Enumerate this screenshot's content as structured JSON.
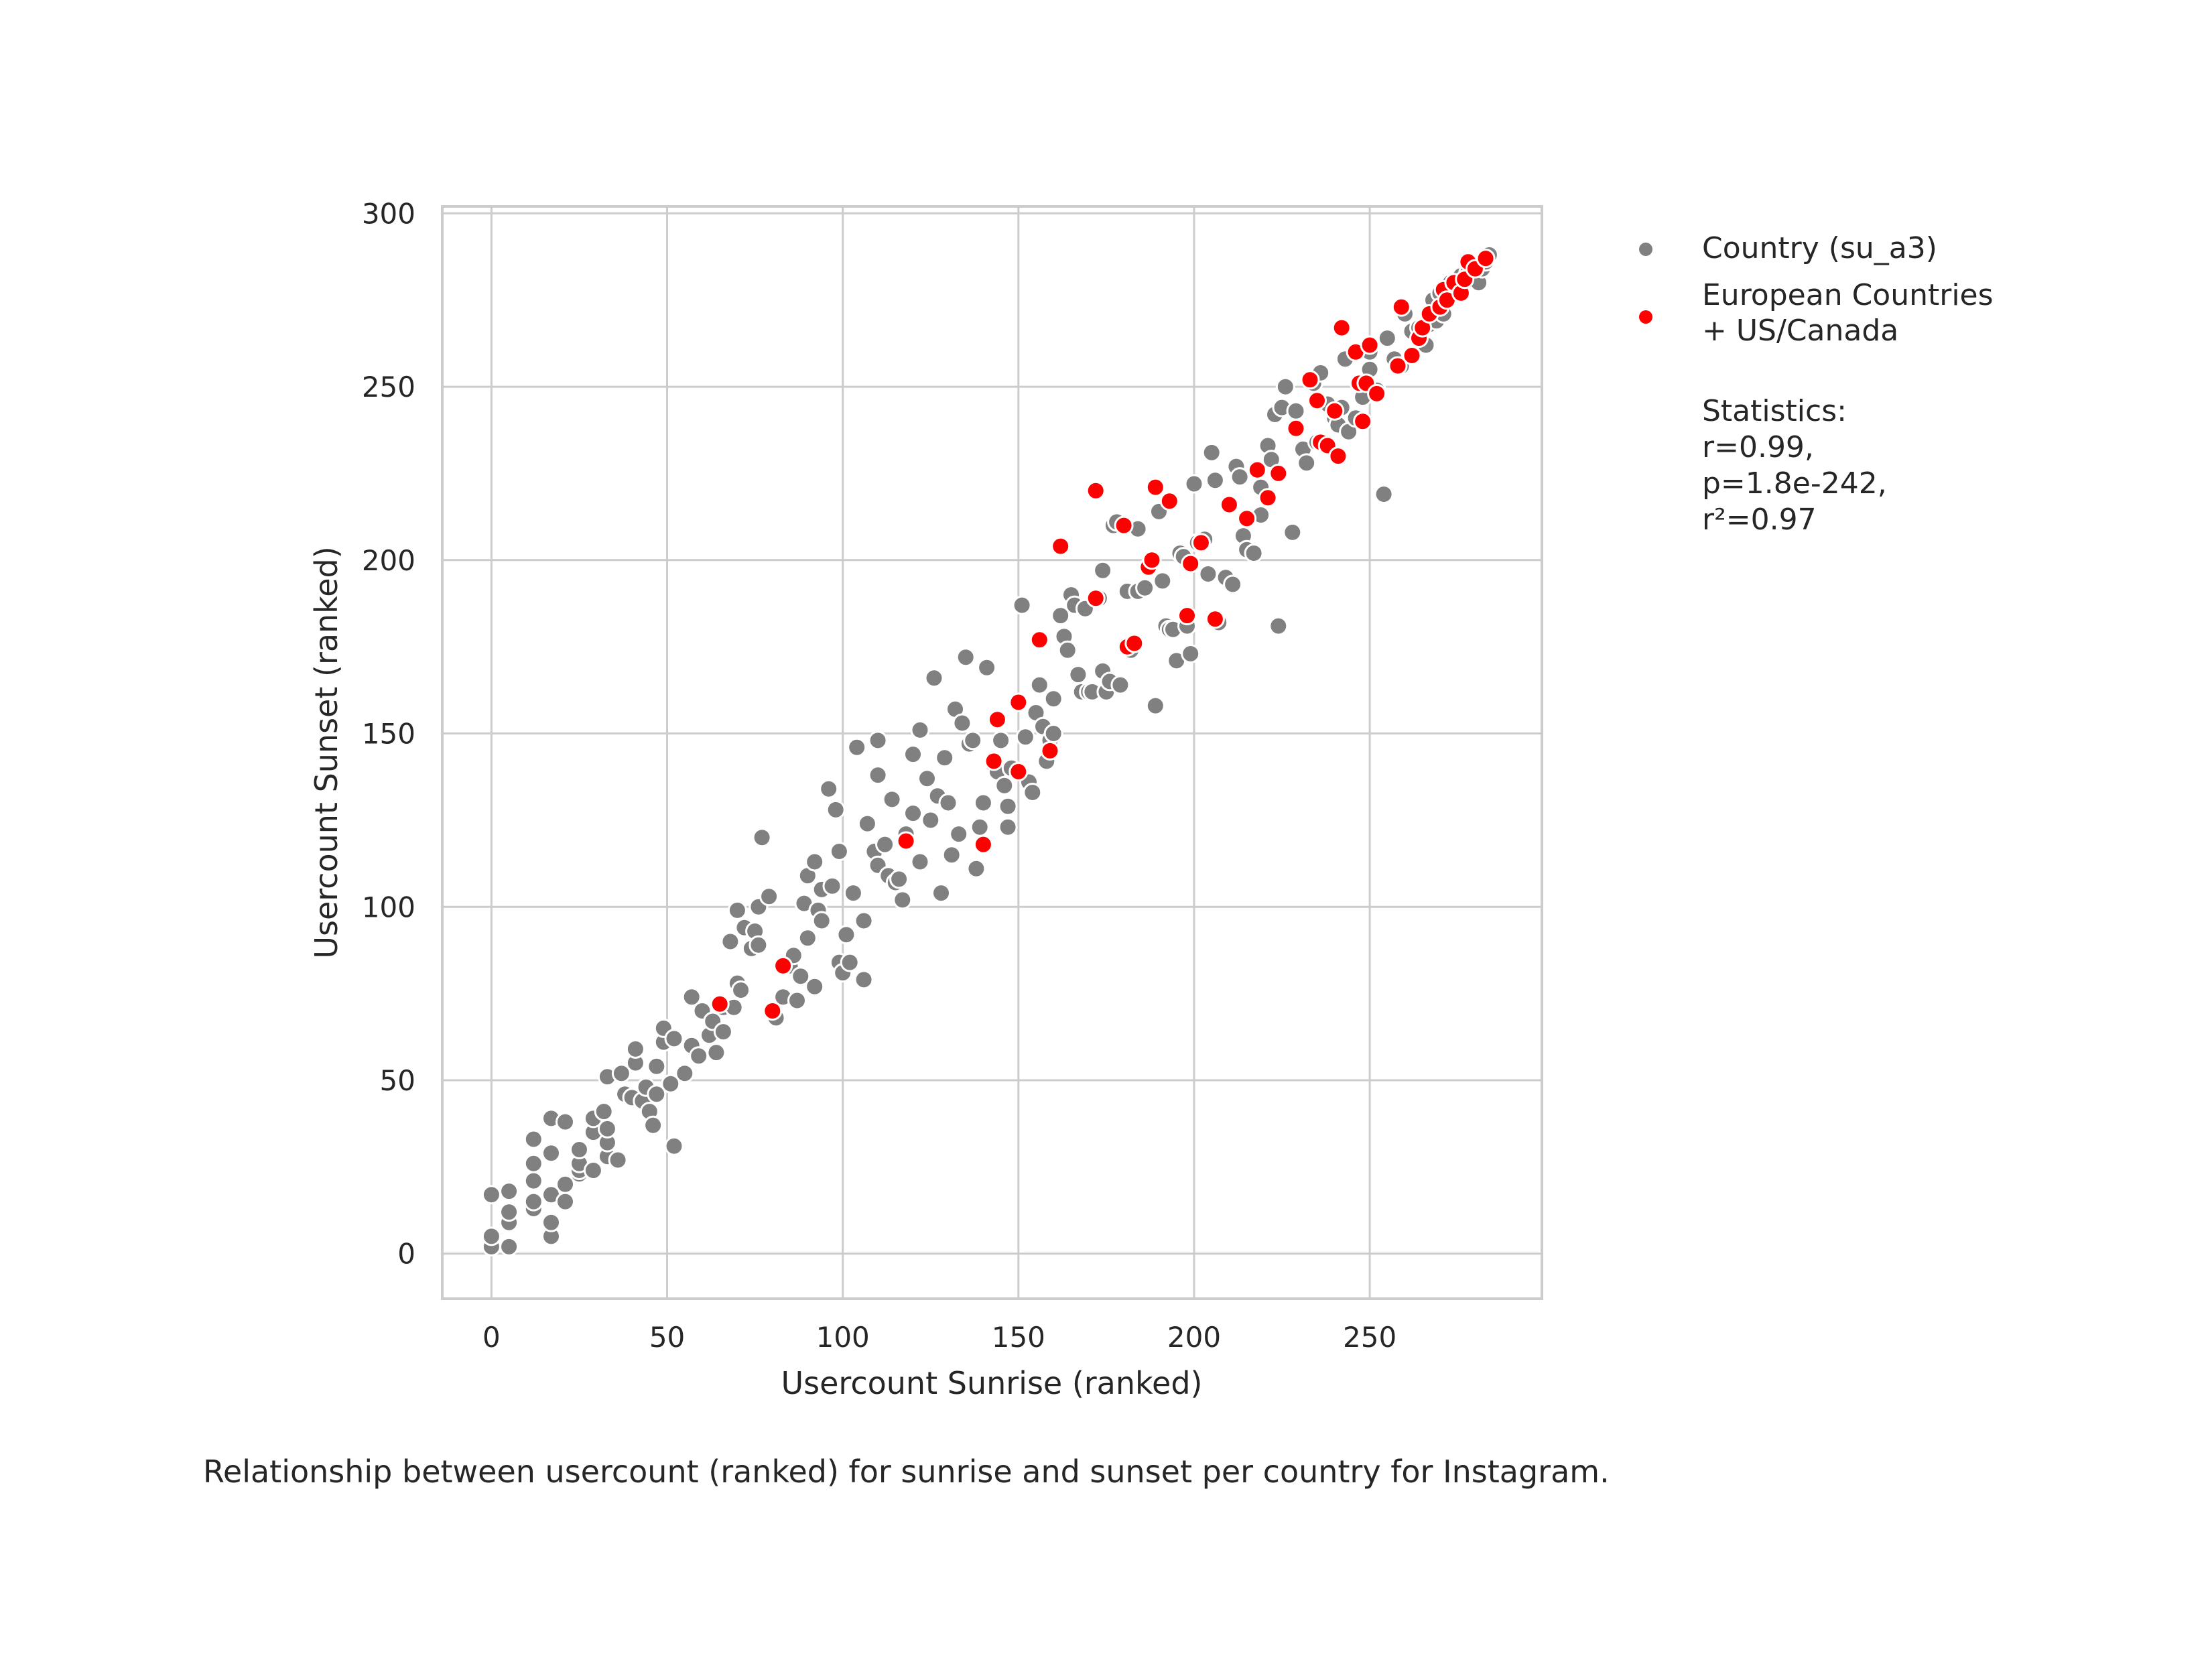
{
  "chart_data": {
    "type": "scatter",
    "title": "",
    "xlabel": "Usercount Sunrise (ranked)",
    "ylabel": "Usercount Sunset (ranked)",
    "xlim": [
      -14,
      299
    ],
    "ylim": [
      -13,
      302
    ],
    "xticks": [
      0,
      50,
      100,
      150,
      200,
      250
    ],
    "yticks": [
      0,
      50,
      100,
      150,
      200,
      250,
      300
    ],
    "grid": true,
    "legend_position": "outside-right",
    "caption": "Relationship between usercount (ranked) for sunrise and sunset per country for Instagram.",
    "series": [
      {
        "name": "Country (su_a3)",
        "color": "#808080",
        "points": [
          [
            0,
            2
          ],
          [
            0,
            5
          ],
          [
            0,
            17
          ],
          [
            5,
            2
          ],
          [
            5,
            9
          ],
          [
            5,
            12
          ],
          [
            5,
            18
          ],
          [
            12,
            13
          ],
          [
            12,
            15
          ],
          [
            12,
            21
          ],
          [
            12,
            26
          ],
          [
            12,
            33
          ],
          [
            17,
            5
          ],
          [
            17,
            9
          ],
          [
            17,
            17
          ],
          [
            17,
            29
          ],
          [
            17,
            39
          ],
          [
            21,
            15
          ],
          [
            21,
            20
          ],
          [
            21,
            38
          ],
          [
            25,
            23
          ],
          [
            25,
            24
          ],
          [
            25,
            26
          ],
          [
            25,
            30
          ],
          [
            29,
            24
          ],
          [
            29,
            35
          ],
          [
            29,
            39
          ],
          [
            32,
            41
          ],
          [
            33,
            28
          ],
          [
            33,
            32
          ],
          [
            33,
            36
          ],
          [
            33,
            51
          ],
          [
            36,
            27
          ],
          [
            37,
            52
          ],
          [
            38,
            46
          ],
          [
            40,
            45
          ],
          [
            41,
            55
          ],
          [
            41,
            59
          ],
          [
            43,
            44
          ],
          [
            44,
            48
          ],
          [
            45,
            41
          ],
          [
            46,
            37
          ],
          [
            47,
            46
          ],
          [
            47,
            54
          ],
          [
            49,
            61
          ],
          [
            49,
            65
          ],
          [
            51,
            49
          ],
          [
            52,
            31
          ],
          [
            52,
            62
          ],
          [
            55,
            52
          ],
          [
            57,
            60
          ],
          [
            57,
            74
          ],
          [
            59,
            57
          ],
          [
            60,
            70
          ],
          [
            62,
            63
          ],
          [
            63,
            67
          ],
          [
            64,
            58
          ],
          [
            66,
            64
          ],
          [
            66,
            71
          ],
          [
            68,
            90
          ],
          [
            69,
            71
          ],
          [
            70,
            78
          ],
          [
            70,
            99
          ],
          [
            71,
            76
          ],
          [
            72,
            94
          ],
          [
            74,
            88
          ],
          [
            75,
            93
          ],
          [
            76,
            89
          ],
          [
            76,
            100
          ],
          [
            77,
            120
          ],
          [
            79,
            103
          ],
          [
            81,
            68
          ],
          [
            83,
            74
          ],
          [
            85,
            83
          ],
          [
            86,
            86
          ],
          [
            87,
            73
          ],
          [
            88,
            80
          ],
          [
            89,
            101
          ],
          [
            90,
            91
          ],
          [
            90,
            109
          ],
          [
            92,
            77
          ],
          [
            92,
            113
          ],
          [
            93,
            99
          ],
          [
            94,
            96
          ],
          [
            94,
            105
          ],
          [
            96,
            134
          ],
          [
            97,
            106
          ],
          [
            98,
            128
          ],
          [
            99,
            84
          ],
          [
            99,
            116
          ],
          [
            100,
            81
          ],
          [
            101,
            92
          ],
          [
            102,
            84
          ],
          [
            103,
            104
          ],
          [
            104,
            146
          ],
          [
            106,
            79
          ],
          [
            106,
            96
          ],
          [
            107,
            124
          ],
          [
            109,
            116
          ],
          [
            110,
            112
          ],
          [
            110,
            138
          ],
          [
            110,
            148
          ],
          [
            112,
            118
          ],
          [
            113,
            109
          ],
          [
            114,
            131
          ],
          [
            115,
            107
          ],
          [
            116,
            108
          ],
          [
            117,
            102
          ],
          [
            118,
            121
          ],
          [
            120,
            127
          ],
          [
            120,
            144
          ],
          [
            122,
            113
          ],
          [
            122,
            151
          ],
          [
            124,
            137
          ],
          [
            125,
            125
          ],
          [
            126,
            166
          ],
          [
            127,
            132
          ],
          [
            128,
            104
          ],
          [
            129,
            143
          ],
          [
            130,
            130
          ],
          [
            131,
            115
          ],
          [
            132,
            157
          ],
          [
            133,
            121
          ],
          [
            134,
            153
          ],
          [
            135,
            172
          ],
          [
            136,
            147
          ],
          [
            137,
            148
          ],
          [
            138,
            111
          ],
          [
            139,
            123
          ],
          [
            140,
            130
          ],
          [
            141,
            169
          ],
          [
            143,
            141
          ],
          [
            144,
            139
          ],
          [
            145,
            148
          ],
          [
            146,
            135
          ],
          [
            147,
            123
          ],
          [
            147,
            129
          ],
          [
            148,
            140
          ],
          [
            151,
            187
          ],
          [
            152,
            149
          ],
          [
            153,
            136
          ],
          [
            154,
            133
          ],
          [
            155,
            156
          ],
          [
            156,
            164
          ],
          [
            157,
            152
          ],
          [
            158,
            142
          ],
          [
            159,
            148
          ],
          [
            160,
            150
          ],
          [
            160,
            160
          ],
          [
            162,
            184
          ],
          [
            163,
            178
          ],
          [
            164,
            174
          ],
          [
            165,
            190
          ],
          [
            166,
            187
          ],
          [
            167,
            167
          ],
          [
            168,
            162
          ],
          [
            169,
            186
          ],
          [
            170,
            162
          ],
          [
            171,
            162
          ],
          [
            173,
            189
          ],
          [
            174,
            197
          ],
          [
            174,
            168
          ],
          [
            175,
            162
          ],
          [
            176,
            165
          ],
          [
            177,
            210
          ],
          [
            178,
            211
          ],
          [
            179,
            164
          ],
          [
            181,
            191
          ],
          [
            182,
            174
          ],
          [
            184,
            191
          ],
          [
            184,
            209
          ],
          [
            186,
            192
          ],
          [
            189,
            158
          ],
          [
            190,
            214
          ],
          [
            191,
            194
          ],
          [
            192,
            181
          ],
          [
            193,
            180
          ],
          [
            194,
            180
          ],
          [
            195,
            171
          ],
          [
            196,
            202
          ],
          [
            197,
            201
          ],
          [
            198,
            181
          ],
          [
            199,
            173
          ],
          [
            200,
            222
          ],
          [
            201,
            205
          ],
          [
            203,
            206
          ],
          [
            204,
            196
          ],
          [
            205,
            231
          ],
          [
            206,
            223
          ],
          [
            207,
            182
          ],
          [
            209,
            195
          ],
          [
            211,
            193
          ],
          [
            212,
            227
          ],
          [
            213,
            224
          ],
          [
            214,
            207
          ],
          [
            215,
            203
          ],
          [
            217,
            202
          ],
          [
            219,
            221
          ],
          [
            219,
            213
          ],
          [
            221,
            233
          ],
          [
            222,
            229
          ],
          [
            223,
            242
          ],
          [
            224,
            181
          ],
          [
            225,
            244
          ],
          [
            226,
            250
          ],
          [
            228,
            208
          ],
          [
            229,
            243
          ],
          [
            231,
            232
          ],
          [
            232,
            228
          ],
          [
            234,
            251
          ],
          [
            235,
            234
          ],
          [
            236,
            254
          ],
          [
            238,
            245
          ],
          [
            240,
            241
          ],
          [
            241,
            239
          ],
          [
            242,
            244
          ],
          [
            243,
            258
          ],
          [
            244,
            237
          ],
          [
            246,
            241
          ],
          [
            248,
            247
          ],
          [
            250,
            255
          ],
          [
            250,
            260
          ],
          [
            252,
            249
          ],
          [
            254,
            219
          ],
          [
            255,
            264
          ],
          [
            257,
            258
          ],
          [
            259,
            256
          ],
          [
            260,
            271
          ],
          [
            262,
            266
          ],
          [
            264,
            267
          ],
          [
            266,
            262
          ],
          [
            267,
            268
          ],
          [
            268,
            275
          ],
          [
            269,
            269
          ],
          [
            270,
            277
          ],
          [
            271,
            271
          ],
          [
            273,
            280
          ],
          [
            275,
            277
          ],
          [
            276,
            279
          ],
          [
            276,
            282
          ],
          [
            278,
            283
          ],
          [
            280,
            281
          ],
          [
            281,
            280
          ],
          [
            282,
            284
          ],
          [
            283,
            286
          ],
          [
            284,
            288
          ]
        ]
      },
      {
        "name": "European Countries\n+ US/Canada",
        "color": "#ff0000",
        "points": [
          [
            65,
            72
          ],
          [
            80,
            70
          ],
          [
            83,
            83
          ],
          [
            118,
            119
          ],
          [
            140,
            118
          ],
          [
            143,
            142
          ],
          [
            144,
            154
          ],
          [
            150,
            139
          ],
          [
            150,
            159
          ],
          [
            156,
            177
          ],
          [
            159,
            145
          ],
          [
            162,
            204
          ],
          [
            172,
            189
          ],
          [
            172,
            220
          ],
          [
            180,
            210
          ],
          [
            181,
            175
          ],
          [
            183,
            176
          ],
          [
            187,
            198
          ],
          [
            188,
            200
          ],
          [
            189,
            221
          ],
          [
            193,
            217
          ],
          [
            198,
            184
          ],
          [
            199,
            199
          ],
          [
            202,
            205
          ],
          [
            206,
            183
          ],
          [
            210,
            216
          ],
          [
            215,
            212
          ],
          [
            218,
            226
          ],
          [
            221,
            218
          ],
          [
            224,
            225
          ],
          [
            229,
            238
          ],
          [
            233,
            252
          ],
          [
            235,
            246
          ],
          [
            236,
            234
          ],
          [
            238,
            233
          ],
          [
            240,
            243
          ],
          [
            241,
            230
          ],
          [
            242,
            267
          ],
          [
            246,
            260
          ],
          [
            247,
            251
          ],
          [
            248,
            240
          ],
          [
            249,
            251
          ],
          [
            250,
            262
          ],
          [
            252,
            248
          ],
          [
            258,
            256
          ],
          [
            259,
            273
          ],
          [
            262,
            259
          ],
          [
            264,
            264
          ],
          [
            265,
            267
          ],
          [
            267,
            271
          ],
          [
            270,
            273
          ],
          [
            271,
            278
          ],
          [
            272,
            275
          ],
          [
            274,
            280
          ],
          [
            276,
            277
          ],
          [
            277,
            281
          ],
          [
            278,
            286
          ],
          [
            280,
            284
          ],
          [
            283,
            287
          ]
        ]
      }
    ],
    "annotation": {
      "header": "Statistics:",
      "lines": [
        "r=0.99,",
        "p=1.8e-242,",
        "r²=0.97"
      ]
    }
  }
}
